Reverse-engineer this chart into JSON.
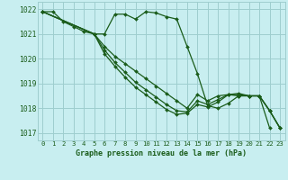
{
  "title": "Graphe pression niveau de la mer (hPa)",
  "bg_color": "#c8eef0",
  "grid_color": "#9ecece",
  "line_color": "#1a5c1a",
  "xlim": [
    -0.5,
    23.5
  ],
  "ylim": [
    1016.7,
    1022.3
  ],
  "yticks": [
    1017,
    1018,
    1019,
    1020,
    1021,
    1022
  ],
  "xticks": [
    0,
    1,
    2,
    3,
    4,
    5,
    6,
    7,
    8,
    9,
    10,
    11,
    12,
    13,
    14,
    15,
    16,
    17,
    18,
    19,
    20,
    21,
    22,
    23
  ],
  "series": [
    {
      "x": [
        0,
        1,
        2,
        3,
        4,
        5,
        6,
        7,
        8,
        9,
        10,
        11,
        12,
        13,
        14,
        15,
        16,
        17,
        18,
        19,
        20,
        21,
        22
      ],
      "y": [
        1021.9,
        1021.9,
        1021.5,
        1021.3,
        1021.1,
        1021.0,
        1021.0,
        1021.8,
        1021.8,
        1021.6,
        1021.9,
        1021.85,
        1021.7,
        1021.6,
        1020.5,
        1019.4,
        1018.1,
        1018.0,
        1018.2,
        1018.5,
        1018.5,
        1018.5,
        1017.2
      ]
    },
    {
      "x": [
        0,
        5,
        6,
        7,
        8,
        9,
        10,
        11,
        12,
        13,
        14,
        15,
        16,
        17,
        18,
        19,
        20,
        21,
        22,
        23
      ],
      "y": [
        1021.9,
        1021.0,
        1020.5,
        1020.1,
        1019.8,
        1019.5,
        1019.2,
        1018.9,
        1018.6,
        1018.3,
        1018.0,
        1018.55,
        1018.3,
        1018.5,
        1018.55,
        1018.5,
        1018.5,
        1018.5,
        1017.9,
        1017.2
      ]
    },
    {
      "x": [
        0,
        5,
        6,
        7,
        8,
        9,
        10,
        11,
        12,
        13,
        14,
        15,
        16,
        17,
        18,
        19,
        20,
        21,
        22,
        23
      ],
      "y": [
        1021.9,
        1021.0,
        1020.35,
        1019.85,
        1019.45,
        1019.05,
        1018.75,
        1018.45,
        1018.15,
        1017.9,
        1017.85,
        1018.3,
        1018.15,
        1018.35,
        1018.55,
        1018.55,
        1018.5,
        1018.5,
        1017.9,
        1017.2
      ]
    },
    {
      "x": [
        0,
        5,
        6,
        7,
        8,
        9,
        10,
        11,
        12,
        13,
        14,
        15,
        16,
        17,
        18,
        19,
        20,
        21,
        22,
        23
      ],
      "y": [
        1021.9,
        1021.0,
        1020.2,
        1019.7,
        1019.25,
        1018.85,
        1018.55,
        1018.25,
        1017.95,
        1017.75,
        1017.8,
        1018.15,
        1018.05,
        1018.25,
        1018.55,
        1018.6,
        1018.5,
        1018.5,
        1017.9,
        1017.2
      ]
    }
  ]
}
